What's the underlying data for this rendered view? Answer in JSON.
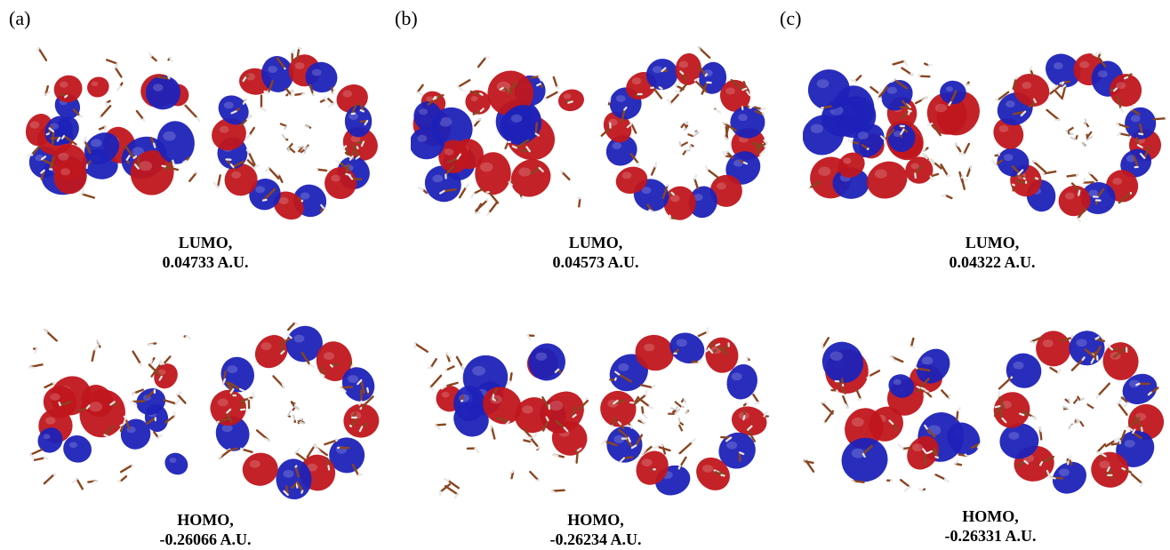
{
  "panels": [
    {
      "label": "(a)",
      "lumo": {
        "title": "LUMO,",
        "energy": "0.04733 A.U."
      },
      "homo": {
        "title": "HOMO,",
        "energy": "-0.26066 A.U."
      }
    },
    {
      "label": "(b)",
      "lumo": {
        "title": "LUMO,",
        "energy": "0.04573 A.U."
      },
      "homo": {
        "title": "HOMO,",
        "energy": "-0.26234 A.U."
      }
    },
    {
      "label": "(c)",
      "lumo": {
        "title": "LUMO,",
        "energy": "0.04322 A.U."
      },
      "homo": {
        "title": "HOMO,",
        "energy": "-0.26331 A.U."
      }
    }
  ],
  "colors": {
    "positive_lobe": "#c0161c",
    "negative_lobe": "#1e22b8",
    "bond": "#8a4520",
    "hydrogen": "#e8e8e8"
  }
}
